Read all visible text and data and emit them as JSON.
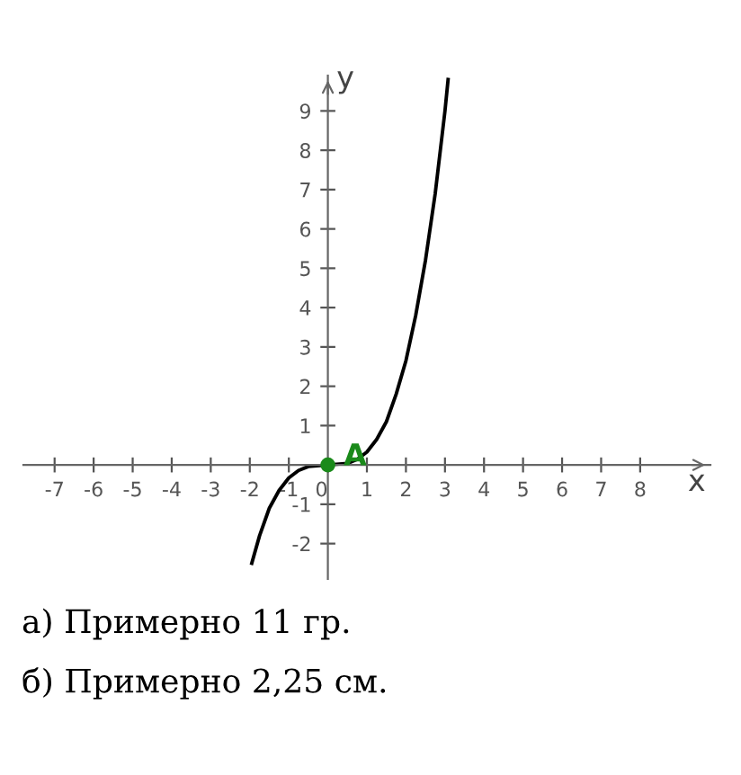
{
  "chart_data": {
    "type": "line",
    "xlabel": "x",
    "ylabel": "y",
    "series": [
      {
        "color": "#000000",
        "x": [
          -1.95,
          -1.75,
          -1.5,
          -1.25,
          -1,
          -0.75,
          -0.5,
          0,
          0.5,
          0.75,
          1,
          1.25,
          1.5,
          1.75,
          2,
          2.25,
          2.5,
          2.75,
          3,
          3.08
        ],
        "values": [
          -2.5,
          -1.8,
          -1.1,
          -0.65,
          -0.33,
          -0.14,
          -0.04,
          0,
          0.04,
          0.14,
          0.33,
          0.65,
          1.1,
          1.8,
          2.65,
          3.8,
          5.2,
          6.9,
          9,
          9.8
        ]
      },
      {
        "type": "scatter",
        "color": "#1a8a1a",
        "x": [
          0
        ],
        "values": [
          0
        ],
        "marker": "circle"
      }
    ],
    "xlim": [
      -7.8,
      9.8
    ],
    "ylim": [
      -2.9,
      9.9
    ],
    "xticks": [
      -7,
      -6,
      -5,
      -4,
      -3,
      -2,
      -1,
      0,
      1,
      2,
      3,
      4,
      5,
      6,
      7,
      8
    ],
    "yticks": [
      -2,
      -1,
      1,
      2,
      3,
      4,
      5,
      6,
      7,
      8,
      9
    ],
    "grid": false,
    "legend": false,
    "annotations": [
      {
        "text": "A",
        "x": 0.7,
        "y": 0.2
      },
      "а) Примерно 11 гр.",
      "б) Примерно 2,25 см."
    ]
  }
}
